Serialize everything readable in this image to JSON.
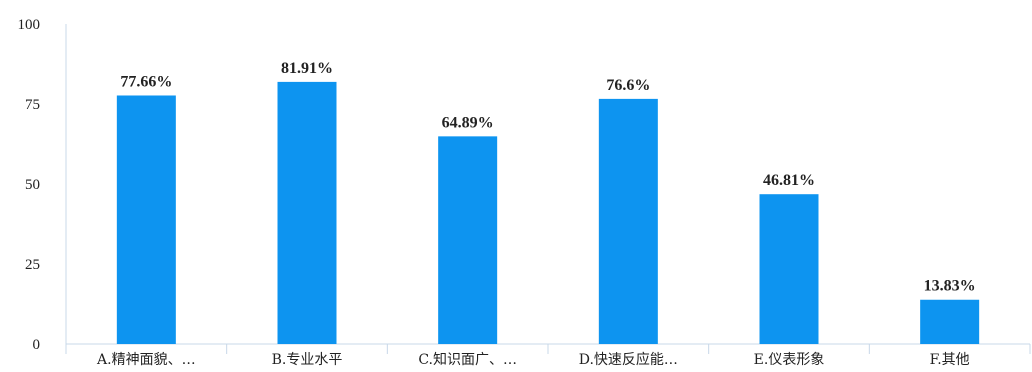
{
  "chart_data": {
    "type": "bar",
    "title": "",
    "xlabel": "",
    "ylabel": "",
    "ylim": [
      0,
      100
    ],
    "yticks": [
      0,
      25,
      50,
      75,
      100
    ],
    "grid": false,
    "bar_color": "#0d94f0",
    "categories": [
      "A.精神面貌、…",
      "B.专业水平",
      "C.知识面广、…",
      "D.快速反应能…",
      "E.仪表形象",
      "F.其他"
    ],
    "values": [
      77.66,
      81.91,
      64.89,
      76.6,
      46.81,
      13.83
    ],
    "data_labels": [
      "77.66%",
      "81.91%",
      "64.89%",
      "76.6%",
      "46.81%",
      "13.83%"
    ]
  }
}
